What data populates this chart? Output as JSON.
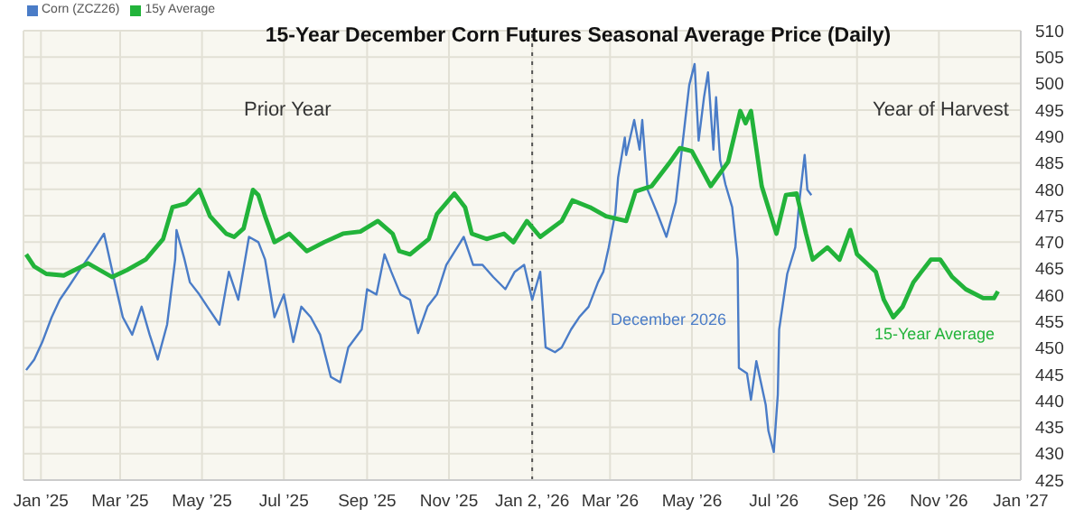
{
  "chart_data": {
    "type": "line",
    "title": "15-Year December Corn Futures Seasonal Average Price (Daily)",
    "series": [
      {
        "name": "Corn (ZCZ26)",
        "color": "#4a7cc7",
        "x": [
          "2024-12-21",
          "2024-12-27",
          "2025-01-02",
          "2025-01-09",
          "2025-01-15",
          "2025-01-22",
          "2025-01-29",
          "2025-02-07",
          "2025-02-17",
          "2025-02-25",
          "2025-03-03",
          "2025-03-10",
          "2025-03-17",
          "2025-03-23",
          "2025-03-29",
          "2025-04-05",
          "2025-04-11",
          "2025-04-12",
          "2025-04-18",
          "2025-04-22",
          "2025-04-29",
          "2025-05-05",
          "2025-05-14",
          "2025-05-21",
          "2025-05-28",
          "2025-06-05",
          "2025-06-12",
          "2025-06-17",
          "2025-06-24",
          "2025-07-01",
          "2025-07-08",
          "2025-07-14",
          "2025-07-21",
          "2025-07-28",
          "2025-08-05",
          "2025-08-12",
          "2025-08-18",
          "2025-08-28",
          "2025-09-01",
          "2025-09-08",
          "2025-09-14",
          "2025-09-19",
          "2025-09-26",
          "2025-10-03",
          "2025-10-09",
          "2025-10-16",
          "2025-10-23",
          "2025-10-30",
          "2025-11-12",
          "2025-11-19",
          "2025-11-26",
          "2025-12-04",
          "2025-12-13",
          "2025-12-20",
          "2025-12-27",
          "2026-01-02",
          "2026-01-08",
          "2026-01-12",
          "2026-01-19",
          "2026-01-24",
          "2026-01-31",
          "2026-02-06",
          "2026-02-13",
          "2026-02-20",
          "2026-02-24",
          "2026-02-28",
          "2026-03-05",
          "2026-03-07",
          "2026-03-12",
          "2026-03-13",
          "2026-03-19",
          "2026-03-23",
          "2026-03-25",
          "2026-03-29",
          "2026-04-05",
          "2026-04-12",
          "2026-04-19",
          "2026-04-25",
          "2026-04-29",
          "2026-05-03",
          "2026-05-06",
          "2026-05-10",
          "2026-05-13",
          "2026-05-17",
          "2026-05-19",
          "2026-05-22",
          "2026-05-26",
          "2026-05-31",
          "2026-06-04",
          "2026-06-05",
          "2026-06-11",
          "2026-06-14",
          "2026-06-18",
          "2026-06-25",
          "2026-06-27",
          "2026-07-01",
          "2026-07-04",
          "2026-07-05",
          "2026-07-11",
          "2026-07-17",
          "2026-07-20",
          "2026-07-24",
          "2026-07-26",
          "2026-07-29"
        ],
        "values": [
          445.8,
          447.8,
          451.1,
          455.8,
          459.1,
          461.7,
          464.4,
          467.7,
          471.6,
          462.4,
          455.8,
          452.5,
          457.8,
          452.5,
          447.8,
          454.4,
          466.7,
          472.3,
          466.7,
          462.4,
          460.1,
          457.8,
          454.4,
          464.4,
          459.1,
          471.0,
          470.0,
          466.7,
          455.8,
          460.1,
          451.1,
          457.8,
          455.8,
          452.5,
          444.5,
          443.5,
          450.1,
          453.5,
          461.1,
          460.1,
          467.7,
          464.4,
          460.1,
          459.1,
          452.8,
          457.8,
          460.1,
          465.7,
          471.0,
          465.7,
          465.7,
          463.4,
          461.1,
          464.4,
          465.7,
          459.1,
          464.4,
          450.1,
          449.2,
          450.1,
          453.5,
          455.8,
          457.8,
          462.4,
          464.4,
          469.0,
          475.6,
          482.2,
          489.8,
          486.5,
          493.1,
          487.5,
          493.1,
          479.9,
          475.6,
          471.0,
          477.6,
          490.8,
          499.7,
          503.7,
          489.2,
          497.4,
          502.1,
          487.5,
          497.4,
          485.5,
          480.9,
          476.6,
          466.7,
          446.2,
          445.2,
          440.2,
          447.5,
          439.2,
          434.3,
          430.3,
          441.2,
          453.5,
          464.0,
          469.0,
          477.6,
          486.5,
          479.9,
          478.9
        ]
      },
      {
        "name": "15y Average",
        "color": "#22b33a",
        "x": [
          "2024-12-21",
          "2024-12-27",
          "2025-01-05",
          "2025-01-18",
          "2025-02-05",
          "2025-02-23",
          "2025-03-06",
          "2025-03-20",
          "2025-04-02",
          "2025-04-09",
          "2025-04-19",
          "2025-04-29",
          "2025-05-07",
          "2025-05-19",
          "2025-05-25",
          "2025-06-01",
          "2025-06-08",
          "2025-06-12",
          "2025-06-17",
          "2025-06-24",
          "2025-07-05",
          "2025-07-18",
          "2025-07-31",
          "2025-08-14",
          "2025-08-27",
          "2025-09-09",
          "2025-09-20",
          "2025-09-25",
          "2025-10-03",
          "2025-10-17",
          "2025-10-23",
          "2025-11-05",
          "2025-11-13",
          "2025-11-18",
          "2025-11-29",
          "2025-12-12",
          "2025-12-19",
          "2025-12-29",
          "2026-01-08",
          "2026-01-24",
          "2026-02-01",
          "2026-02-14",
          "2026-02-26",
          "2026-03-13",
          "2026-03-20",
          "2026-04-01",
          "2026-04-14",
          "2026-04-22",
          "2026-05-01",
          "2026-05-08",
          "2026-05-15",
          "2026-05-28",
          "2026-06-06",
          "2026-06-10",
          "2026-06-14",
          "2026-06-22",
          "2026-07-03",
          "2026-07-10",
          "2026-07-18",
          "2026-07-25",
          "2026-07-30",
          "2026-08-10",
          "2026-08-19",
          "2026-08-27",
          "2026-09-01",
          "2026-09-15",
          "2026-09-21",
          "2026-09-28",
          "2026-10-05",
          "2026-10-13",
          "2026-10-19",
          "2026-10-26",
          "2026-11-02",
          "2026-11-11",
          "2026-11-21",
          "2026-12-04",
          "2026-12-12",
          "2026-12-15"
        ],
        "values": [
          467.7,
          465.4,
          464.0,
          463.7,
          466.0,
          463.4,
          464.7,
          466.7,
          470.6,
          476.6,
          477.3,
          479.9,
          474.9,
          471.6,
          471.0,
          472.6,
          479.9,
          478.9,
          474.9,
          470.0,
          471.6,
          468.3,
          470.0,
          471.6,
          472.0,
          474.0,
          471.6,
          468.3,
          467.7,
          470.6,
          475.3,
          479.2,
          476.6,
          471.6,
          470.6,
          471.6,
          470.0,
          474.0,
          471.0,
          474.0,
          477.9,
          476.6,
          474.9,
          474.0,
          479.6,
          480.6,
          484.9,
          487.8,
          487.2,
          483.9,
          480.6,
          485.2,
          494.8,
          492.5,
          494.8,
          480.6,
          471.6,
          478.9,
          479.2,
          471.6,
          466.7,
          469.0,
          466.7,
          472.3,
          467.7,
          464.4,
          459.1,
          455.8,
          457.8,
          462.4,
          464.4,
          466.7,
          466.7,
          463.4,
          461.1,
          459.4,
          459.4,
          460.7
        ]
      }
    ],
    "xlim": [
      "2024-12-19",
      "2027-01-01"
    ],
    "xticks": [
      {
        "value": "2025-01-01",
        "label": "Jan ’25"
      },
      {
        "value": "2025-03-01",
        "label": "Mar ’25"
      },
      {
        "value": "2025-05-01",
        "label": "May ’25"
      },
      {
        "value": "2025-07-01",
        "label": "Jul ’25"
      },
      {
        "value": "2025-09-01",
        "label": "Sep ’25"
      },
      {
        "value": "2025-11-01",
        "label": "Nov ’25"
      },
      {
        "value": "2026-01-02",
        "label": "Jan 2, ’26"
      },
      {
        "value": "2026-03-01",
        "label": "Mar ’26"
      },
      {
        "value": "2026-05-01",
        "label": "May ’26"
      },
      {
        "value": "2026-07-01",
        "label": "Jul ’26"
      },
      {
        "value": "2026-09-01",
        "label": "Sep ’26"
      },
      {
        "value": "2026-11-01",
        "label": "Nov ’26"
      },
      {
        "value": "2027-01-01",
        "label": "Jan ’27"
      }
    ],
    "ylim": [
      425,
      510
    ],
    "yticks": [
      425,
      430,
      435,
      440,
      445,
      450,
      455,
      460,
      465,
      470,
      475,
      480,
      485,
      490,
      495,
      500,
      505,
      510
    ],
    "ref_lines": [
      {
        "axis": "x",
        "value": "2026-01-02",
        "color": "#555555",
        "line_style": "dotted"
      }
    ],
    "annotations": [
      "Prior Year",
      "Year of Harvest",
      "December 2026",
      "15-Year Average"
    ],
    "grid": true,
    "legend": "top left",
    "marker": "none",
    "line_style": "solid"
  }
}
